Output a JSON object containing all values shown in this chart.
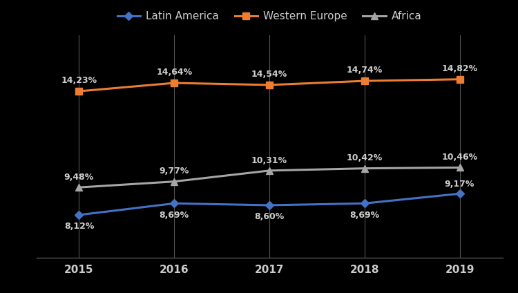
{
  "years": [
    2015,
    2016,
    2017,
    2018,
    2019
  ],
  "latin_america": [
    8.12,
    8.69,
    8.6,
    8.69,
    9.17
  ],
  "western_europe": [
    14.23,
    14.64,
    14.54,
    14.74,
    14.82
  ],
  "africa": [
    9.48,
    9.77,
    10.31,
    10.42,
    10.46
  ],
  "latin_america_labels": [
    "8,12%",
    "8,69%",
    "8,60%",
    "8,69%",
    "9,17%"
  ],
  "western_europe_labels": [
    "14,23%",
    "14,64%",
    "14,54%",
    "14,74%",
    "14,82%"
  ],
  "africa_labels": [
    "9,48%",
    "9,77%",
    "10,31%",
    "10,42%",
    "10,46%"
  ],
  "latin_america_color": "#4472C4",
  "western_europe_color": "#ED7D31",
  "africa_color": "#A5A5A5",
  "background_color": "#000000",
  "text_color": "#CCCCCC",
  "grid_color": "#444444",
  "ylim": [
    6,
    17
  ],
  "legend_labels": [
    "Latin America",
    "Western Europe",
    "Africa"
  ]
}
